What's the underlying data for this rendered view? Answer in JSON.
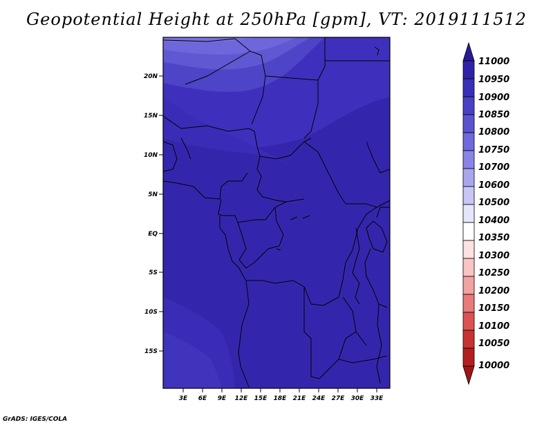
{
  "title": "Geopotential Height at 250hPa [gpm], VT: 2019111512",
  "credit": "GrADS: IGES/COLA",
  "map": {
    "lat_labels": [
      "20N",
      "15N",
      "10N",
      "5N",
      "EQ",
      "5S",
      "10S",
      "15S"
    ],
    "lon_labels": [
      "3E",
      "6E",
      "9E",
      "12E",
      "15E",
      "18E",
      "21E",
      "24E",
      "27E",
      "30E",
      "33E"
    ],
    "lat_range": [
      -20,
      25
    ],
    "lon_range": [
      0,
      35
    ]
  },
  "colorbar": {
    "levels": [
      "11000",
      "10950",
      "10900",
      "10850",
      "10800",
      "10750",
      "10700",
      "10600",
      "10500",
      "10400",
      "10350",
      "10300",
      "10250",
      "10200",
      "10150",
      "10100",
      "10050",
      "10000"
    ],
    "colors": [
      "#2a1a96",
      "#3022a8",
      "#3a2fb8",
      "#4a40c4",
      "#5c52d0",
      "#7068dc",
      "#8a84e6",
      "#aaa6ee",
      "#c8c6f4",
      "#e6e6fa",
      "#ffffff",
      "#fde2e2",
      "#f9c4c4",
      "#f2a2a2",
      "#e87a7a",
      "#dc5252",
      "#c83232",
      "#b41e1e",
      "#a01414"
    ]
  }
}
